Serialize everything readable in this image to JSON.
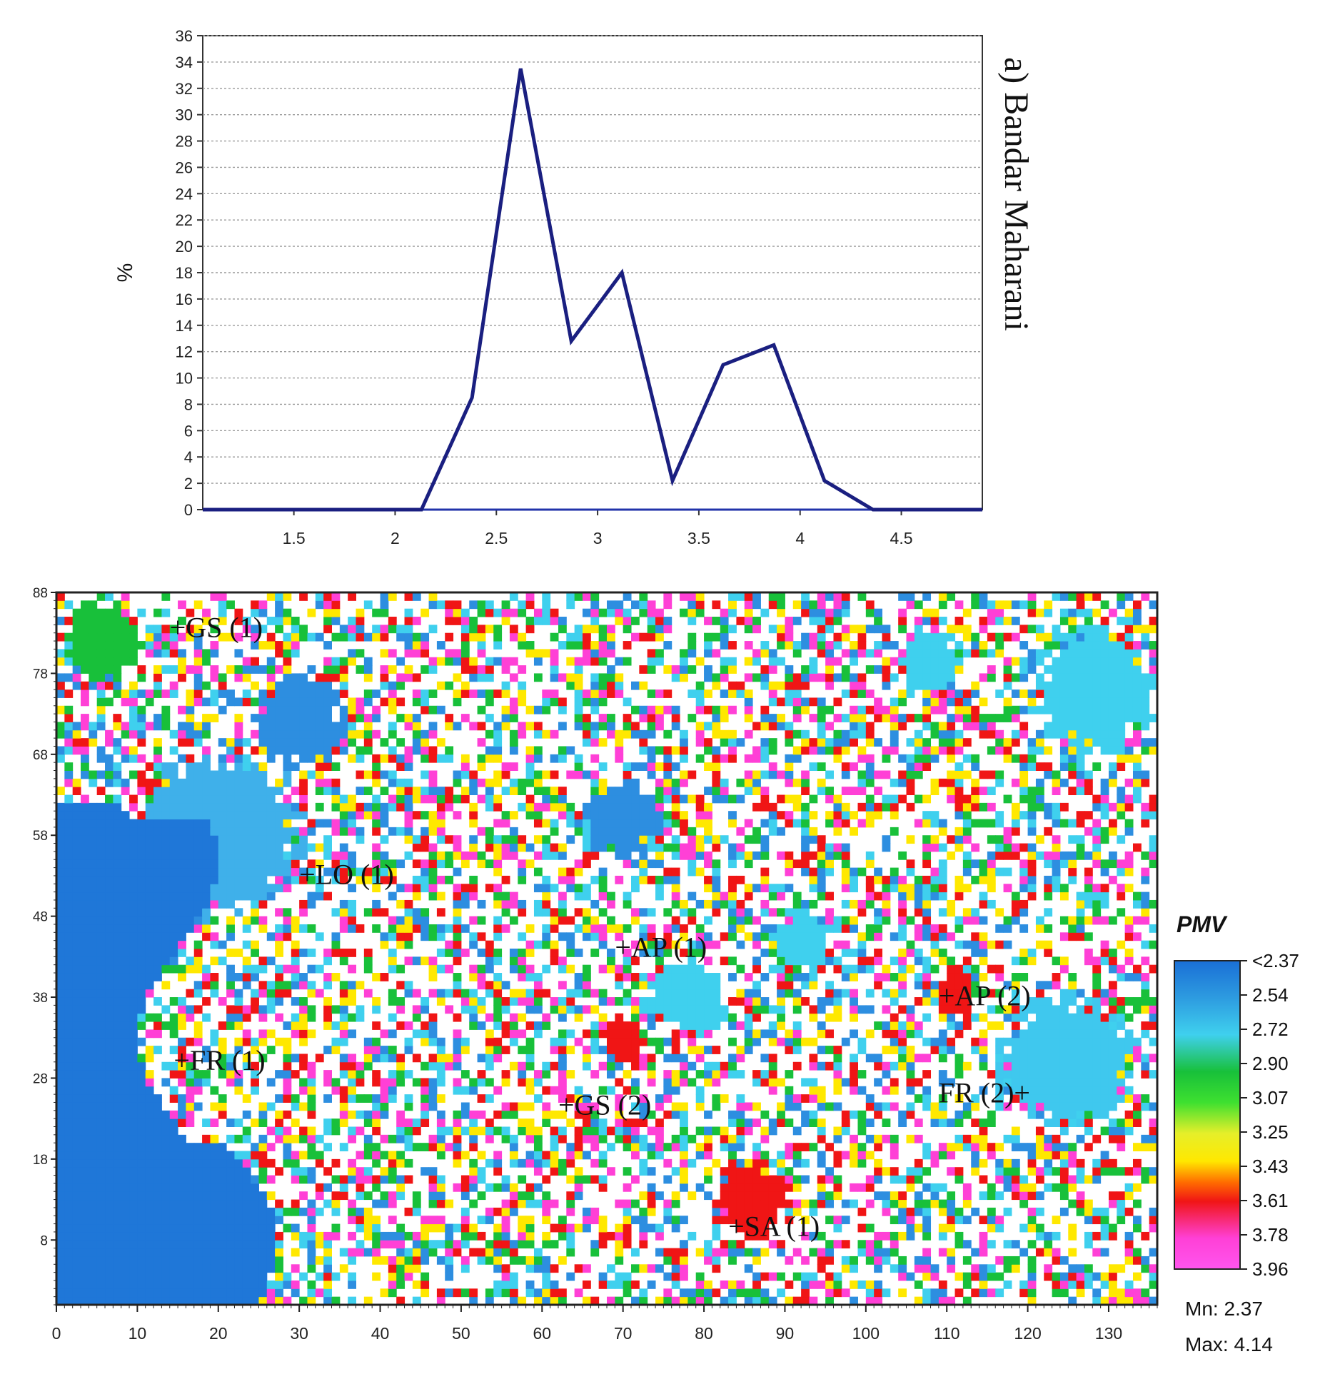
{
  "chart_data": [
    {
      "type": "line",
      "title": "a) Bandar Maharani",
      "ylabel": "%",
      "xlabel": "",
      "xlim": [
        1.05,
        4.9
      ],
      "ylim": [
        0,
        36
      ],
      "grid": true,
      "x_ticks": [
        "1.5",
        "2",
        "2.5",
        "3",
        "3.5",
        "4",
        "4.5"
      ],
      "y_ticks": [
        "0",
        "2",
        "4",
        "6",
        "8",
        "10",
        "12",
        "14",
        "16",
        "18",
        "20",
        "22",
        "24",
        "26",
        "28",
        "30",
        "32",
        "34",
        "36"
      ],
      "color": "#1a1f80",
      "series": [
        {
          "x": [
            1.05,
            2.13,
            2.38,
            2.62,
            2.87,
            3.12,
            3.37,
            3.62,
            3.87,
            4.12,
            4.36,
            4.9
          ],
          "y": [
            0,
            0,
            8.5,
            33.5,
            12.8,
            18,
            2.2,
            11,
            12.5,
            2.2,
            0,
            0
          ]
        }
      ]
    },
    {
      "type": "heatmap",
      "xlim": [
        0,
        136
      ],
      "ylim": [
        0,
        88
      ],
      "x_ticks": [
        "0",
        "10",
        "20",
        "30",
        "40",
        "50",
        "60",
        "70",
        "80",
        "90",
        "100",
        "110",
        "120",
        "130"
      ],
      "y_ticks": [
        "8",
        "18",
        "28",
        "38",
        "48",
        "58",
        "68",
        "78",
        "88"
      ],
      "labels": [
        {
          "text": "+GS (1)",
          "x": 14,
          "y": 82.5
        },
        {
          "text": "+LO (1)",
          "x": 30,
          "y": 52
        },
        {
          "text": "+AP (1)",
          "x": 69,
          "y": 43
        },
        {
          "text": "+AP (2)",
          "x": 109,
          "y": 37
        },
        {
          "text": "+FR (1)",
          "x": 14.5,
          "y": 29
        },
        {
          "text": "+GS (2)",
          "x": 62,
          "y": 23.5
        },
        {
          "text": "FR (2)+",
          "x": 109,
          "y": 25
        },
        {
          "text": "+SA (1)",
          "x": 83,
          "y": 8.5
        }
      ],
      "legend": {
        "title": "PMV",
        "ticks": [
          "<2.37",
          "2.54",
          "2.72",
          "2.90",
          "3.07",
          "3.25",
          "3.43",
          "3.61",
          "3.78",
          "3.96"
        ],
        "colors": [
          "#1a6fd6",
          "#2d9be0",
          "#3fd0ee",
          "#18c03a",
          "#3ee030",
          "#e6ef2a",
          "#ffe800",
          "#ff6a00",
          "#f01515",
          "#ff40d6",
          "#ff55ee"
        ]
      },
      "stats": {
        "min": "Mn:  2.37",
        "max": "Max: 4.14"
      }
    }
  ]
}
